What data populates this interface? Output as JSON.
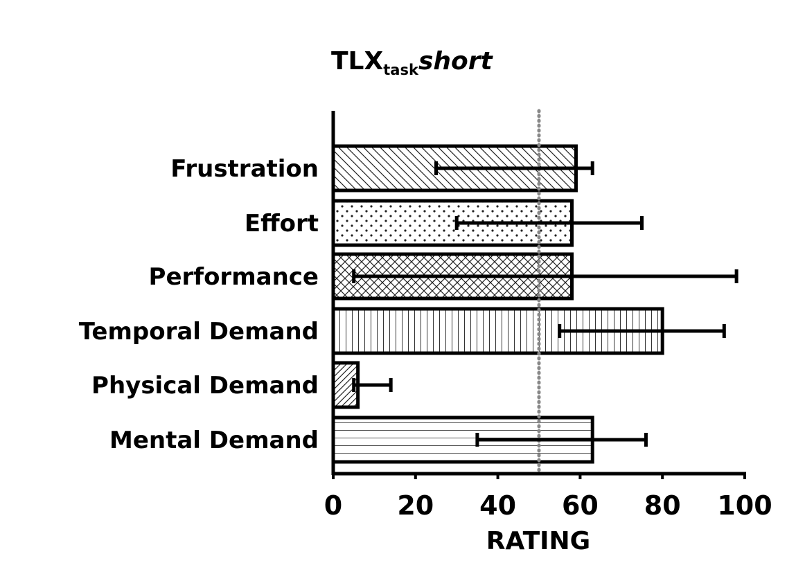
{
  "chart_data": {
    "type": "bar",
    "orientation": "horizontal",
    "title": {
      "main": "TLX",
      "subscript": "task",
      "italic": "short"
    },
    "xlabel": "RATING",
    "ylabel": "",
    "xlim": [
      0,
      100
    ],
    "x_ticks": [
      0,
      20,
      40,
      60,
      80,
      100
    ],
    "reference_line": {
      "value": 50,
      "style": "dotted",
      "color": "#888888"
    },
    "categories": [
      "Frustration",
      "Effort",
      "Performance",
      "Temporal Demand",
      "Physical Demand",
      "Mental Demand"
    ],
    "values": [
      59,
      58,
      58,
      80,
      6,
      63
    ],
    "error_low": [
      25,
      30,
      5,
      55,
      5,
      35
    ],
    "error_high": [
      63,
      75,
      98,
      95,
      14,
      76
    ],
    "patterns": [
      "diagonal-down",
      "dots",
      "crosshatch",
      "vertical-lines",
      "diagonal-up",
      "horizontal-lines"
    ],
    "grid": false,
    "colors": {
      "bar_edge": "#000000",
      "bar_fill": "#ffffff",
      "reference": "#888888"
    }
  }
}
